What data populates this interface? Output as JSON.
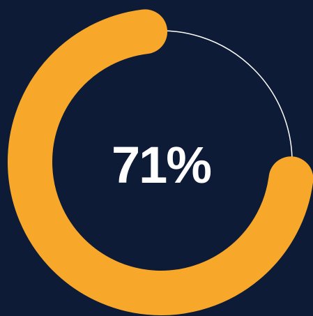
{
  "progress": {
    "percent_label": "71%",
    "value": 0.71,
    "colors": {
      "background": "#0d1b36",
      "arc": "#f7a82b",
      "track": "#ffffff"
    }
  }
}
